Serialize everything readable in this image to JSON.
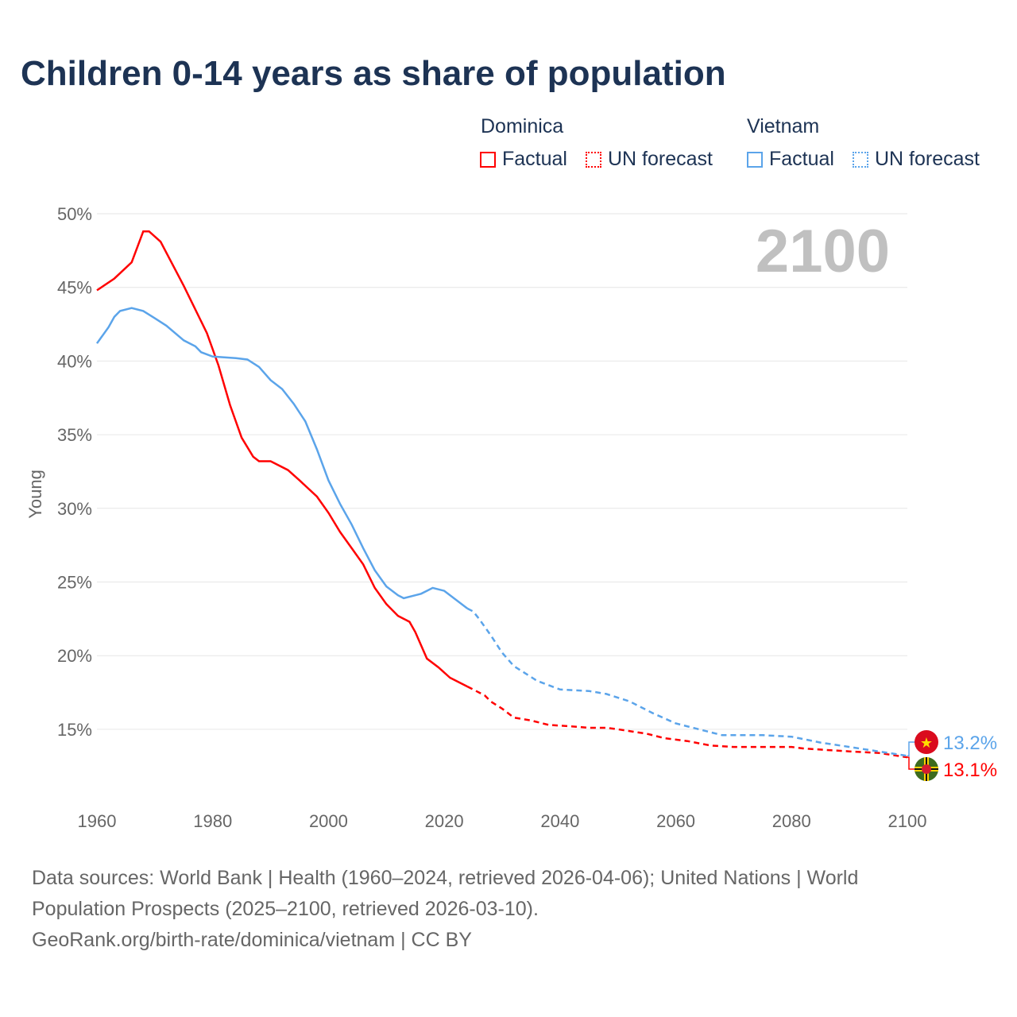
{
  "title": "Children 0-14 years as share of population",
  "legend": {
    "groups": [
      {
        "name": "Dominica",
        "factual": "Factual",
        "forecast": "UN forecast"
      },
      {
        "name": "Vietnam",
        "factual": "Factual",
        "forecast": "UN forecast"
      }
    ]
  },
  "year_watermark": "2100",
  "footer": {
    "line1": "Data sources: World Bank | Health (1960–2024, retrieved 2026-04-06); United Nations | World",
    "line2": "Population Prospects (2025–2100, retrieved 2026-03-10).",
    "line3": "GeoRank.org/birth-rate/dominica/vietnam | CC BY"
  },
  "chart_data": {
    "type": "line",
    "title": "Children 0-14 years as share of population",
    "ylabel": "Young",
    "xlabel": "",
    "xlim": [
      1960,
      2100
    ],
    "ylim": [
      11,
      50
    ],
    "x_ticks": [
      "1960",
      "1980",
      "2000",
      "2020",
      "2040",
      "2060",
      "2080",
      "2100"
    ],
    "y_ticks": [
      "15%",
      "20%",
      "25%",
      "30%",
      "35%",
      "40%",
      "45%",
      "50%"
    ],
    "grid": true,
    "legend_placement": "top-right",
    "series": [
      {
        "name": "Dominica",
        "color": "#ff0000",
        "end_label": "13.1%",
        "factual": [
          [
            1960,
            44.8
          ],
          [
            1963,
            45.6
          ],
          [
            1966,
            46.7
          ],
          [
            1968,
            48.8
          ],
          [
            1969,
            48.8
          ],
          [
            1971,
            48.1
          ],
          [
            1975,
            45.1
          ],
          [
            1979,
            41.9
          ],
          [
            1981,
            39.7
          ],
          [
            1983,
            37.0
          ],
          [
            1985,
            34.8
          ],
          [
            1987,
            33.5
          ],
          [
            1988,
            33.2
          ],
          [
            1990,
            33.2
          ],
          [
            1993,
            32.6
          ],
          [
            1995,
            31.9
          ],
          [
            1998,
            30.8
          ],
          [
            2000,
            29.7
          ],
          [
            2002,
            28.4
          ],
          [
            2004,
            27.3
          ],
          [
            2006,
            26.2
          ],
          [
            2008,
            24.6
          ],
          [
            2010,
            23.5
          ],
          [
            2012,
            22.7
          ],
          [
            2014,
            22.3
          ],
          [
            2015,
            21.6
          ],
          [
            2017,
            19.8
          ],
          [
            2019,
            19.2
          ],
          [
            2021,
            18.5
          ],
          [
            2024,
            17.9
          ]
        ],
        "forecast": [
          [
            2024,
            17.9
          ],
          [
            2025,
            17.7
          ],
          [
            2027,
            17.3
          ],
          [
            2028,
            16.9
          ],
          [
            2030,
            16.4
          ],
          [
            2032,
            15.8
          ],
          [
            2035,
            15.6
          ],
          [
            2038,
            15.3
          ],
          [
            2042,
            15.2
          ],
          [
            2045,
            15.1
          ],
          [
            2048,
            15.1
          ],
          [
            2050,
            15.0
          ],
          [
            2055,
            14.7
          ],
          [
            2058,
            14.4
          ],
          [
            2062,
            14.2
          ],
          [
            2066,
            13.9
          ],
          [
            2070,
            13.8
          ],
          [
            2080,
            13.8
          ],
          [
            2082,
            13.7
          ],
          [
            2086,
            13.6
          ],
          [
            2090,
            13.5
          ],
          [
            2095,
            13.4
          ],
          [
            2100,
            13.1
          ]
        ]
      },
      {
        "name": "Vietnam",
        "color": "#5ba4ea",
        "end_label": "13.2%",
        "factual": [
          [
            1960,
            41.2
          ],
          [
            1962,
            42.3
          ],
          [
            1963,
            43.0
          ],
          [
            1964,
            43.4
          ],
          [
            1966,
            43.6
          ],
          [
            1968,
            43.4
          ],
          [
            1970,
            42.9
          ],
          [
            1972,
            42.4
          ],
          [
            1975,
            41.4
          ],
          [
            1977,
            41.0
          ],
          [
            1978,
            40.6
          ],
          [
            1980,
            40.3
          ],
          [
            1984,
            40.2
          ],
          [
            1986,
            40.1
          ],
          [
            1988,
            39.6
          ],
          [
            1990,
            38.7
          ],
          [
            1992,
            38.1
          ],
          [
            1994,
            37.1
          ],
          [
            1996,
            35.9
          ],
          [
            1998,
            34.0
          ],
          [
            2000,
            31.9
          ],
          [
            2002,
            30.3
          ],
          [
            2004,
            28.9
          ],
          [
            2006,
            27.3
          ],
          [
            2008,
            25.8
          ],
          [
            2010,
            24.7
          ],
          [
            2012,
            24.1
          ],
          [
            2013,
            23.9
          ],
          [
            2015,
            24.1
          ],
          [
            2016,
            24.2
          ],
          [
            2017,
            24.4
          ],
          [
            2018,
            24.6
          ],
          [
            2020,
            24.4
          ],
          [
            2022,
            23.8
          ],
          [
            2024,
            23.2
          ]
        ],
        "forecast": [
          [
            2024,
            23.2
          ],
          [
            2025,
            23.0
          ],
          [
            2026,
            22.5
          ],
          [
            2028,
            21.4
          ],
          [
            2030,
            20.2
          ],
          [
            2032,
            19.3
          ],
          [
            2034,
            18.8
          ],
          [
            2036,
            18.3
          ],
          [
            2038,
            18.0
          ],
          [
            2040,
            17.7
          ],
          [
            2045,
            17.6
          ],
          [
            2048,
            17.4
          ],
          [
            2052,
            16.9
          ],
          [
            2056,
            16.1
          ],
          [
            2060,
            15.4
          ],
          [
            2064,
            15.0
          ],
          [
            2068,
            14.6
          ],
          [
            2075,
            14.6
          ],
          [
            2080,
            14.5
          ],
          [
            2085,
            14.1
          ],
          [
            2090,
            13.8
          ],
          [
            2095,
            13.5
          ],
          [
            2100,
            13.2
          ]
        ]
      }
    ]
  }
}
